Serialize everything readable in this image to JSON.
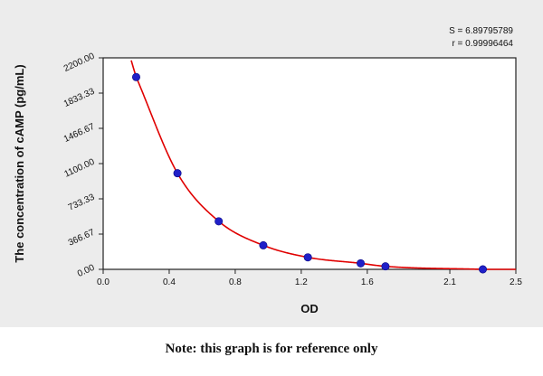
{
  "chart_data": {
    "type": "scatter",
    "xlabel": "OD",
    "ylabel": "The concentration of cAMP (pg/mL)",
    "xlim": [
      0.0,
      2.5
    ],
    "ylim": [
      0.0,
      2200.0
    ],
    "x_ticks": [
      "0.0",
      "0.4",
      "0.8",
      "1.2",
      "1.6",
      "2.1",
      "2.5"
    ],
    "y_ticks": [
      "0.00",
      "366.67",
      "733.33",
      "1100.00",
      "1466.67",
      "1833.33",
      "2200.00"
    ],
    "series": [
      {
        "points": [
          {
            "x": 0.2,
            "y": 2000
          },
          {
            "x": 0.45,
            "y": 1000
          },
          {
            "x": 0.7,
            "y": 500
          },
          {
            "x": 0.97,
            "y": 250
          },
          {
            "x": 1.24,
            "y": 125
          },
          {
            "x": 1.56,
            "y": 62.5
          },
          {
            "x": 1.71,
            "y": 31.25
          },
          {
            "x": 2.3,
            "y": 0
          }
        ],
        "marker_color": "#2020c8",
        "fit_color": "#e00000"
      }
    ],
    "stats": {
      "s_text": "S = 6.89795789",
      "r_text": "r = 0.99996464"
    },
    "grid": false
  },
  "note": "Note: this graph is for reference only",
  "colors": {
    "panel": "#ececec",
    "fit_line": "#e00000",
    "marker": "#2020c8"
  }
}
